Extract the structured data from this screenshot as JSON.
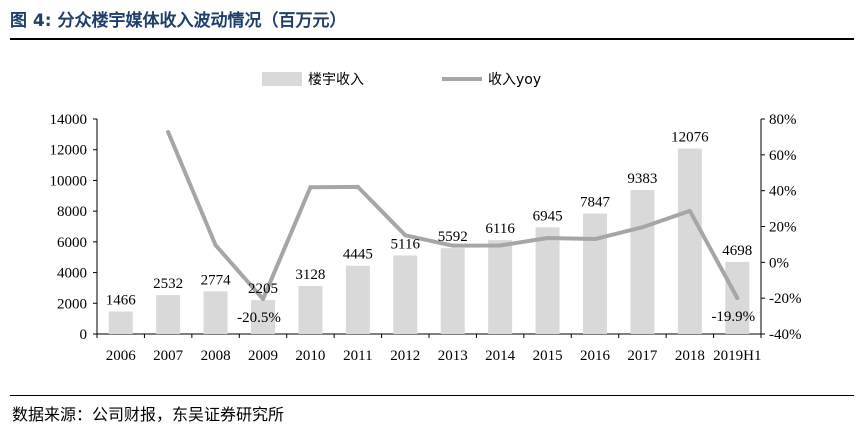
{
  "figure": {
    "label": "图 4:",
    "title": "分众楼宇媒体收入波动情况（百万元）",
    "source": "数据来源：公司财报，东吴证券研究所"
  },
  "chart_data": {
    "type": "bar+line",
    "categories": [
      "2006",
      "2007",
      "2008",
      "2009",
      "2010",
      "2011",
      "2012",
      "2013",
      "2014",
      "2015",
      "2016",
      "2017",
      "2018",
      "2019H1"
    ],
    "series": [
      {
        "name": "楼宇收入",
        "type": "bar",
        "axis": "left",
        "color": "#d9d9d9",
        "values": [
          1466,
          2532,
          2774,
          2205,
          3128,
          4445,
          5116,
          5592,
          6116,
          6945,
          7847,
          9383,
          12076,
          4698
        ],
        "data_labels": [
          "1466",
          "2532",
          "2774",
          "2205",
          "3128",
          "4445",
          "5116",
          "5592",
          "6116",
          "6945",
          "7847",
          "9383",
          "12076",
          "4698"
        ]
      },
      {
        "name": "收入yoy",
        "type": "line",
        "axis": "right",
        "color": "#a6a6a6",
        "values": [
          null,
          72.7,
          9.6,
          -20.5,
          41.9,
          42.1,
          15.1,
          9.3,
          9.4,
          13.6,
          13.0,
          19.6,
          28.7,
          -19.9
        ],
        "data_labels": [
          null,
          null,
          null,
          "-20.5%",
          null,
          null,
          null,
          null,
          null,
          null,
          null,
          null,
          null,
          "-19.9%"
        ]
      }
    ],
    "left_axis": {
      "min": 0,
      "max": 14000,
      "ticks": [
        "0",
        "2000",
        "4000",
        "6000",
        "8000",
        "10000",
        "12000",
        "14000"
      ]
    },
    "right_axis": {
      "min": -40,
      "max": 80,
      "ticks": [
        "-40%",
        "-20%",
        "0%",
        "20%",
        "40%",
        "60%",
        "80%"
      ]
    },
    "legend": {
      "position": "top",
      "entries": [
        "楼宇收入",
        "收入yoy"
      ]
    },
    "grid": false
  }
}
